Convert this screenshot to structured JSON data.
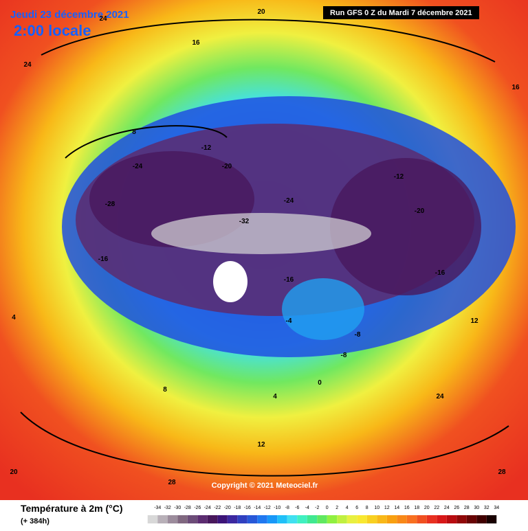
{
  "header": {
    "date": "Jeudi 23 décembre 2021",
    "time": "2:00 locale",
    "run": "Run GFS 0 Z du Mardi 7 décembre 2021"
  },
  "copyright": "Copyright © 2021 Meteociel.fr",
  "legend": {
    "title": "Température à 2m (°C)",
    "subtitle": "(+ 384h)",
    "ticks": [
      -34,
      -32,
      -30,
      -28,
      -26,
      -24,
      -22,
      -20,
      -18,
      -16,
      -14,
      -12,
      -10,
      -8,
      -6,
      -4,
      -2,
      0,
      2,
      4,
      6,
      8,
      10,
      12,
      14,
      16,
      18,
      20,
      22,
      24,
      26,
      28,
      30,
      32,
      34
    ],
    "colors": [
      "#d8d8d8",
      "#b8b0b8",
      "#9c8c9c",
      "#806880",
      "#6c4c78",
      "#5c2c70",
      "#48185c",
      "#3c1478",
      "#3c28a0",
      "#3040c0",
      "#2858d8",
      "#2078f0",
      "#1898f8",
      "#20c0f8",
      "#40e0f0",
      "#40f0c0",
      "#40e890",
      "#60e860",
      "#90f040",
      "#c0f040",
      "#e8f040",
      "#f8e830",
      "#f8d020",
      "#f8b818",
      "#f8a010",
      "#f88818",
      "#f87020",
      "#f05020",
      "#e83020",
      "#d81818",
      "#b80c10",
      "#900808",
      "#680404",
      "#400000",
      "#180000"
    ]
  },
  "contour_labels": [
    24,
    16,
    20,
    8,
    -12,
    -24,
    -20,
    -28,
    -32,
    -16,
    -8,
    -4,
    0,
    4,
    12,
    28,
    -12,
    -24,
    -20,
    -16,
    8,
    12,
    20,
    24,
    28,
    16,
    -8,
    -16,
    4,
    24
  ]
}
